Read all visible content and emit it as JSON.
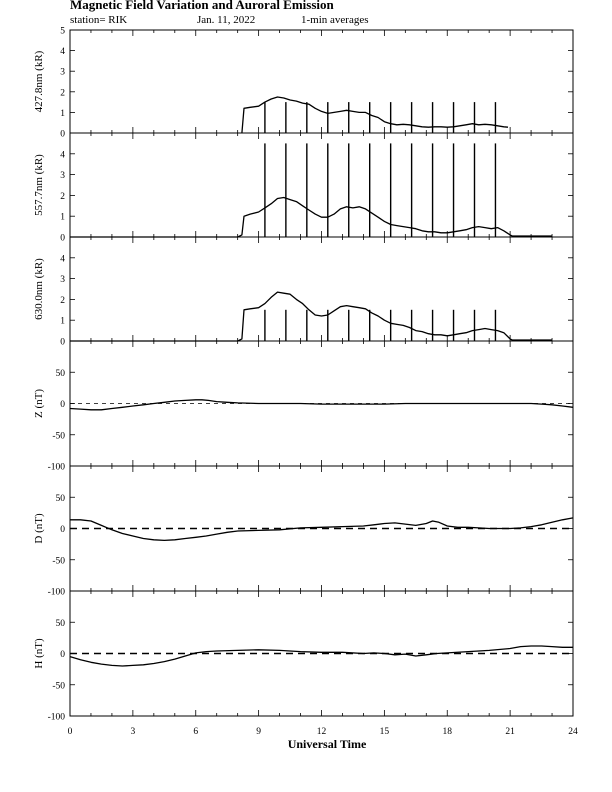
{
  "header": {
    "title": "Magnetic Field Variation and Auroral Emission",
    "station": "station= RIK",
    "date": "Jan. 11, 2022",
    "averaging": "1-min averages"
  },
  "chart_data": {
    "type": "line",
    "xlabel": "Universal Time",
    "xlim": [
      0,
      24
    ],
    "xticks": [
      0,
      3,
      6,
      9,
      12,
      15,
      18,
      21,
      24
    ],
    "panels": [
      {
        "id": "427",
        "ylabel": "427.8nm (kR)",
        "ylim": [
          0,
          5
        ],
        "yticks": [
          0,
          1,
          2,
          3,
          4,
          5
        ],
        "x": [
          8.2,
          8.3,
          8.6,
          9.0,
          9.3,
          9.6,
          9.9,
          10.2,
          10.5,
          10.8,
          11.1,
          11.4,
          11.7,
          12.0,
          12.3,
          12.6,
          12.9,
          13.2,
          13.5,
          13.8,
          14.1,
          14.4,
          14.7,
          15.0,
          15.3,
          15.6,
          15.9,
          16.2,
          16.5,
          16.8,
          17.1,
          17.4,
          17.7,
          18.0,
          18.3,
          18.6,
          18.9,
          19.2,
          19.5,
          19.8,
          20.1,
          20.4,
          20.7,
          20.9
        ],
        "y": [
          0,
          1.2,
          1.25,
          1.3,
          1.5,
          1.65,
          1.75,
          1.7,
          1.6,
          1.55,
          1.45,
          1.4,
          1.2,
          1.05,
          0.95,
          1.0,
          1.05,
          1.1,
          1.05,
          1.0,
          1.0,
          0.85,
          0.75,
          0.55,
          0.45,
          0.4,
          0.42,
          0.4,
          0.35,
          0.3,
          0.28,
          0.3,
          0.3,
          0.28,
          0.3,
          0.35,
          0.4,
          0.45,
          0.4,
          0.42,
          0.4,
          0.35,
          0.3,
          0.28
        ],
        "spikes": [
          9.3,
          10.3,
          11.3,
          12.3,
          13.3,
          14.3,
          15.3,
          16.3,
          17.3,
          18.3,
          19.3,
          20.3
        ],
        "spike_top": 1.5
      },
      {
        "id": "557",
        "ylabel": "557.7nm (kR)",
        "ylim": [
          0,
          5
        ],
        "yticks": [
          0,
          1,
          2,
          3,
          4
        ],
        "x": [
          0,
          8.0,
          8.2,
          8.3,
          8.6,
          9.0,
          9.3,
          9.6,
          9.9,
          10.2,
          10.5,
          10.8,
          11.1,
          11.4,
          11.7,
          12.0,
          12.3,
          12.6,
          12.9,
          13.2,
          13.5,
          13.8,
          14.1,
          14.4,
          14.7,
          15.0,
          15.3,
          15.6,
          15.9,
          16.2,
          16.5,
          16.8,
          17.1,
          17.4,
          17.7,
          18.0,
          18.3,
          18.6,
          18.9,
          19.2,
          19.5,
          19.8,
          20.1,
          20.4,
          20.7,
          21.0,
          21.1,
          23.0
        ],
        "y": [
          0,
          0,
          0.1,
          1.0,
          1.1,
          1.2,
          1.4,
          1.6,
          1.85,
          1.9,
          1.8,
          1.7,
          1.5,
          1.3,
          1.1,
          0.95,
          0.95,
          1.1,
          1.35,
          1.45,
          1.4,
          1.45,
          1.35,
          1.15,
          0.95,
          0.75,
          0.6,
          0.55,
          0.5,
          0.45,
          0.4,
          0.3,
          0.25,
          0.25,
          0.2,
          0.2,
          0.25,
          0.3,
          0.35,
          0.45,
          0.5,
          0.45,
          0.4,
          0.45,
          0.3,
          0.1,
          0.05,
          0.05
        ],
        "spikes": [
          9.3,
          10.3,
          11.3,
          12.3,
          13.3,
          14.3,
          15.3,
          16.3,
          17.3,
          18.3,
          19.3,
          20.3
        ],
        "spike_top": 4.5
      },
      {
        "id": "630",
        "ylabel": "630.0nm (kR)",
        "ylim": [
          0,
          5
        ],
        "yticks": [
          0,
          1,
          2,
          3,
          4
        ],
        "x": [
          0,
          8.0,
          8.2,
          8.3,
          8.6,
          9.0,
          9.3,
          9.6,
          9.9,
          10.2,
          10.5,
          10.8,
          11.1,
          11.4,
          11.7,
          12.0,
          12.3,
          12.6,
          12.9,
          13.2,
          13.5,
          13.8,
          14.1,
          14.4,
          14.7,
          15.0,
          15.3,
          15.6,
          15.9,
          16.2,
          16.5,
          16.8,
          17.1,
          17.4,
          17.7,
          18.0,
          18.3,
          18.6,
          18.9,
          19.2,
          19.5,
          19.8,
          20.1,
          20.4,
          20.7,
          21.0,
          21.1,
          23.0
        ],
        "y": [
          0,
          0,
          0.1,
          1.5,
          1.55,
          1.6,
          1.8,
          2.1,
          2.35,
          2.3,
          2.25,
          2.0,
          1.8,
          1.5,
          1.25,
          1.2,
          1.25,
          1.45,
          1.65,
          1.7,
          1.65,
          1.6,
          1.55,
          1.35,
          1.2,
          1.0,
          0.85,
          0.8,
          0.75,
          0.65,
          0.5,
          0.45,
          0.35,
          0.3,
          0.3,
          0.25,
          0.3,
          0.35,
          0.4,
          0.5,
          0.55,
          0.6,
          0.55,
          0.5,
          0.4,
          0.1,
          0.05,
          0.05
        ],
        "spikes": [
          9.3,
          10.3,
          11.3,
          12.3,
          13.3,
          14.3,
          15.3,
          16.3,
          17.3,
          18.3,
          19.3,
          20.3
        ],
        "spike_top": 1.5
      },
      {
        "id": "Z",
        "ylabel": "Z (nT)",
        "ylim": [
          -100,
          100
        ],
        "yticks": [
          -100,
          -50,
          0,
          50
        ],
        "x": [
          0,
          0.5,
          1.0,
          1.5,
          2.0,
          2.5,
          3.0,
          3.5,
          4.0,
          4.5,
          5.0,
          5.5,
          6.0,
          6.3,
          6.6,
          7.0,
          7.5,
          8.0,
          9,
          10,
          11,
          12,
          13,
          14,
          15,
          16,
          17,
          18,
          19,
          20,
          21,
          22,
          22.5,
          23,
          23.5,
          24
        ],
        "y": [
          -8,
          -9,
          -10,
          -10,
          -8,
          -6,
          -4,
          -2,
          0,
          2,
          4,
          5,
          6,
          6,
          5,
          3,
          2,
          1,
          0,
          0,
          0,
          -1,
          -1,
          -1,
          -1,
          0,
          0,
          0,
          0,
          0,
          0,
          0,
          -1,
          -2,
          -4,
          -6
        ],
        "baseline": "thin"
      },
      {
        "id": "D",
        "ylabel": "D (nT)",
        "ylim": [
          -100,
          100
        ],
        "yticks": [
          -100,
          -50,
          0,
          50
        ],
        "x": [
          0,
          0.5,
          1.0,
          1.5,
          2.0,
          2.5,
          3.0,
          3.5,
          4.0,
          4.5,
          5.0,
          5.5,
          6.0,
          6.5,
          7.0,
          7.5,
          8.0,
          9,
          10,
          11,
          12,
          13,
          14,
          14.5,
          15,
          15.5,
          16,
          16.5,
          17,
          17.3,
          17.6,
          18,
          18.5,
          19,
          19.5,
          20,
          20.5,
          21,
          21.5,
          22,
          22.5,
          23,
          23.5,
          24
        ],
        "y": [
          14,
          14,
          12,
          5,
          -2,
          -8,
          -12,
          -16,
          -18,
          -19,
          -18,
          -16,
          -14,
          -12,
          -9,
          -6,
          -4,
          -3,
          -2,
          1,
          2,
          3,
          4,
          6,
          8,
          9,
          7,
          5,
          8,
          12,
          10,
          4,
          2,
          2,
          1,
          0,
          0,
          0,
          1,
          3,
          6,
          10,
          14,
          17
        ],
        "baseline": "thick"
      },
      {
        "id": "H",
        "ylabel": "H (nT)",
        "ylim": [
          -100,
          100
        ],
        "yticks": [
          -100,
          -50,
          0,
          50
        ],
        "x": [
          0,
          0.5,
          1.0,
          1.5,
          2.0,
          2.5,
          3.0,
          3.5,
          4.0,
          4.5,
          5.0,
          5.5,
          6.0,
          6.5,
          7.0,
          8.0,
          9,
          10,
          11,
          12,
          13,
          14,
          14.5,
          15,
          15.5,
          16,
          16.5,
          17,
          17.5,
          18,
          19,
          20,
          21,
          21.5,
          22,
          22.5,
          23,
          23.5,
          24
        ],
        "y": [
          -5,
          -10,
          -14,
          -17,
          -19,
          -20,
          -19,
          -18,
          -16,
          -13,
          -9,
          -4,
          1,
          3,
          4,
          5,
          6,
          5,
          3,
          2,
          2,
          0,
          1,
          0,
          -2,
          -1,
          -4,
          -2,
          0,
          1,
          3,
          5,
          8,
          11,
          12,
          12,
          11,
          10,
          10
        ],
        "baseline": "thick"
      }
    ]
  }
}
